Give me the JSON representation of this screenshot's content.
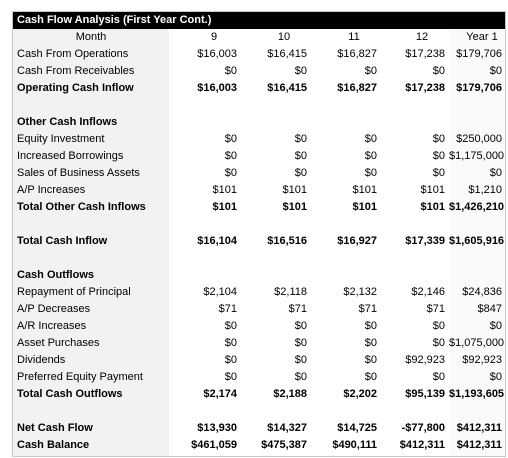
{
  "title": "Cash Flow Analysis (First Year Cont.)",
  "header": {
    "label": "Month",
    "cols": [
      "9",
      "10",
      "11",
      "12",
      "Year 1"
    ]
  },
  "rows": [
    {
      "type": "data",
      "label": "Cash From Operations",
      "bold": false,
      "values": [
        "$16,003",
        "$16,415",
        "$16,827",
        "$17,238",
        "$179,706"
      ]
    },
    {
      "type": "data",
      "label": "Cash From Receivables",
      "bold": false,
      "values": [
        "$0",
        "$0",
        "$0",
        "$0",
        "$0"
      ]
    },
    {
      "type": "data",
      "label": "Operating Cash Inflow",
      "bold": true,
      "values": [
        "$16,003",
        "$16,415",
        "$16,827",
        "$17,238",
        "$179,706"
      ]
    },
    {
      "type": "blank"
    },
    {
      "type": "section",
      "label": "Other Cash Inflows"
    },
    {
      "type": "data",
      "label": "Equity Investment",
      "bold": false,
      "values": [
        "$0",
        "$0",
        "$0",
        "$0",
        "$250,000"
      ]
    },
    {
      "type": "data",
      "label": "Increased Borrowings",
      "bold": false,
      "values": [
        "$0",
        "$0",
        "$0",
        "$0",
        "$1,175,000"
      ]
    },
    {
      "type": "data",
      "label": "Sales of Business Assets",
      "bold": false,
      "values": [
        "$0",
        "$0",
        "$0",
        "$0",
        "$0"
      ]
    },
    {
      "type": "data",
      "label": "A/P Increases",
      "bold": false,
      "values": [
        "$101",
        "$101",
        "$101",
        "$101",
        "$1,210"
      ]
    },
    {
      "type": "data",
      "label": "Total Other Cash Inflows",
      "bold": true,
      "values": [
        "$101",
        "$101",
        "$101",
        "$101",
        "$1,426,210"
      ]
    },
    {
      "type": "blank"
    },
    {
      "type": "data",
      "label": "Total Cash Inflow",
      "bold": true,
      "values": [
        "$16,104",
        "$16,516",
        "$16,927",
        "$17,339",
        "$1,605,916"
      ]
    },
    {
      "type": "blank"
    },
    {
      "type": "section",
      "label": "Cash Outflows"
    },
    {
      "type": "data",
      "label": "Repayment of Principal",
      "bold": false,
      "values": [
        "$2,104",
        "$2,118",
        "$2,132",
        "$2,146",
        "$24,836"
      ]
    },
    {
      "type": "data",
      "label": "A/P Decreases",
      "bold": false,
      "values": [
        "$71",
        "$71",
        "$71",
        "$71",
        "$847"
      ]
    },
    {
      "type": "data",
      "label": "A/R Increases",
      "bold": false,
      "values": [
        "$0",
        "$0",
        "$0",
        "$0",
        "$0"
      ]
    },
    {
      "type": "data",
      "label": "Asset Purchases",
      "bold": false,
      "values": [
        "$0",
        "$0",
        "$0",
        "$0",
        "$1,075,000"
      ]
    },
    {
      "type": "data",
      "label": "Dividends",
      "bold": false,
      "values": [
        "$0",
        "$0",
        "$0",
        "$92,923",
        "$92,923"
      ]
    },
    {
      "type": "data",
      "label": "Preferred Equity Payment",
      "bold": false,
      "values": [
        "$0",
        "$0",
        "$0",
        "$0",
        "$0"
      ]
    },
    {
      "type": "data",
      "label": "Total Cash Outflows",
      "bold": true,
      "values": [
        "$2,174",
        "$2,188",
        "$2,202",
        "$95,139",
        "$1,193,605"
      ]
    },
    {
      "type": "blank"
    },
    {
      "type": "data",
      "label": "Net Cash Flow",
      "bold": true,
      "values": [
        "$13,930",
        "$14,327",
        "$14,725",
        "-$77,800",
        "$412,311"
      ]
    },
    {
      "type": "data",
      "label": "Cash Balance",
      "bold": true,
      "values": [
        "$461,059",
        "$475,387",
        "$490,111",
        "$412,311",
        "$412,311"
      ]
    }
  ]
}
